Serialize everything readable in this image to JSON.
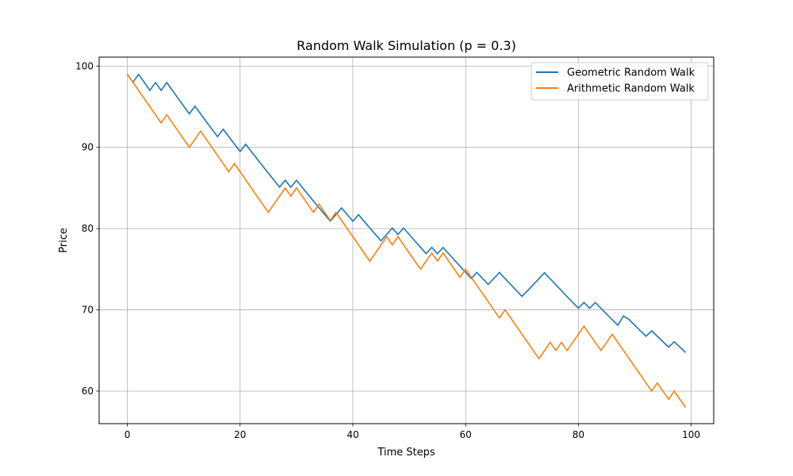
{
  "chart_data": {
    "type": "line",
    "title": "Random Walk Simulation (p = 0.3)",
    "xlabel": "Time Steps",
    "ylabel": "Price",
    "xlim": [
      -5,
      104
    ],
    "ylim": [
      56.0,
      101.1
    ],
    "xticks": [
      0,
      20,
      40,
      60,
      80,
      100
    ],
    "yticks": [
      60,
      70,
      80,
      90,
      100
    ],
    "grid": true,
    "legend_position": "top-right",
    "x": [
      0,
      1,
      2,
      3,
      4,
      5,
      6,
      7,
      8,
      9,
      10,
      11,
      12,
      13,
      14,
      15,
      16,
      17,
      18,
      19,
      20,
      21,
      22,
      23,
      24,
      25,
      26,
      27,
      28,
      29,
      30,
      31,
      32,
      33,
      34,
      35,
      36,
      37,
      38,
      39,
      40,
      41,
      42,
      43,
      44,
      45,
      46,
      47,
      48,
      49,
      50,
      51,
      52,
      53,
      54,
      55,
      56,
      57,
      58,
      59,
      60,
      61,
      62,
      63,
      64,
      65,
      66,
      67,
      68,
      69,
      70,
      71,
      72,
      73,
      74,
      75,
      76,
      77,
      78,
      79,
      80,
      81,
      82,
      83,
      84,
      85,
      86,
      87,
      88,
      89,
      90,
      91,
      92,
      93,
      94,
      95,
      96,
      97,
      98,
      99
    ],
    "series": [
      {
        "name": "Geometric Random Walk",
        "color": "#1f77b4",
        "values": [
          99.0,
          98.0,
          98.98,
          98.0,
          97.0,
          97.98,
          97.0,
          97.97,
          97.0,
          96.03,
          95.07,
          94.12,
          95.06,
          94.11,
          93.17,
          92.24,
          91.32,
          92.23,
          91.31,
          90.4,
          89.49,
          90.39,
          89.48,
          88.59,
          87.7,
          86.83,
          85.96,
          85.1,
          85.95,
          85.09,
          85.94,
          85.09,
          84.24,
          83.4,
          82.56,
          81.74,
          80.92,
          81.73,
          82.55,
          81.72,
          80.9,
          81.71,
          80.9,
          80.09,
          79.29,
          78.5,
          79.28,
          80.08,
          79.28,
          80.07,
          79.27,
          78.48,
          77.69,
          76.92,
          77.69,
          76.91,
          77.68,
          76.9,
          76.14,
          75.37,
          74.62,
          73.87,
          74.61,
          73.87,
          73.13,
          73.86,
          74.6,
          73.85,
          73.11,
          72.38,
          71.66,
          72.37,
          73.1,
          73.83,
          74.57,
          73.82,
          73.09,
          72.36,
          71.63,
          70.92,
          70.21,
          70.91,
          70.2,
          70.9,
          70.19,
          69.49,
          68.8,
          68.11,
          69.25,
          68.8,
          68.11,
          67.43,
          66.75,
          67.42,
          66.75,
          66.08,
          65.42,
          66.07,
          65.41,
          64.76
        ],
        "values_note_hidden": ""
      },
      {
        "name": "Arithmetic Random Walk",
        "color": "#ff7f0e",
        "values": [
          99,
          98,
          97,
          96,
          95,
          94,
          93,
          94,
          93,
          92,
          91,
          90,
          91,
          92,
          91,
          90,
          89,
          88,
          87,
          88,
          87,
          86,
          85,
          84,
          83,
          82,
          83,
          84,
          85,
          84,
          85,
          84,
          83,
          82,
          83,
          82,
          81,
          82,
          81,
          80,
          79,
          78,
          77,
          76,
          77,
          78,
          79,
          78,
          79,
          78,
          77,
          76,
          75,
          76,
          77,
          76,
          77,
          76,
          75,
          74,
          75,
          74,
          73,
          72,
          71,
          70,
          69,
          70,
          69,
          68,
          67,
          66,
          65,
          64,
          65,
          66,
          65,
          66,
          65,
          66,
          67,
          68,
          67,
          66,
          65,
          66,
          67,
          66,
          65,
          64,
          63,
          62,
          61,
          60,
          61,
          60,
          59,
          60,
          59,
          58
        ]
      }
    ]
  }
}
